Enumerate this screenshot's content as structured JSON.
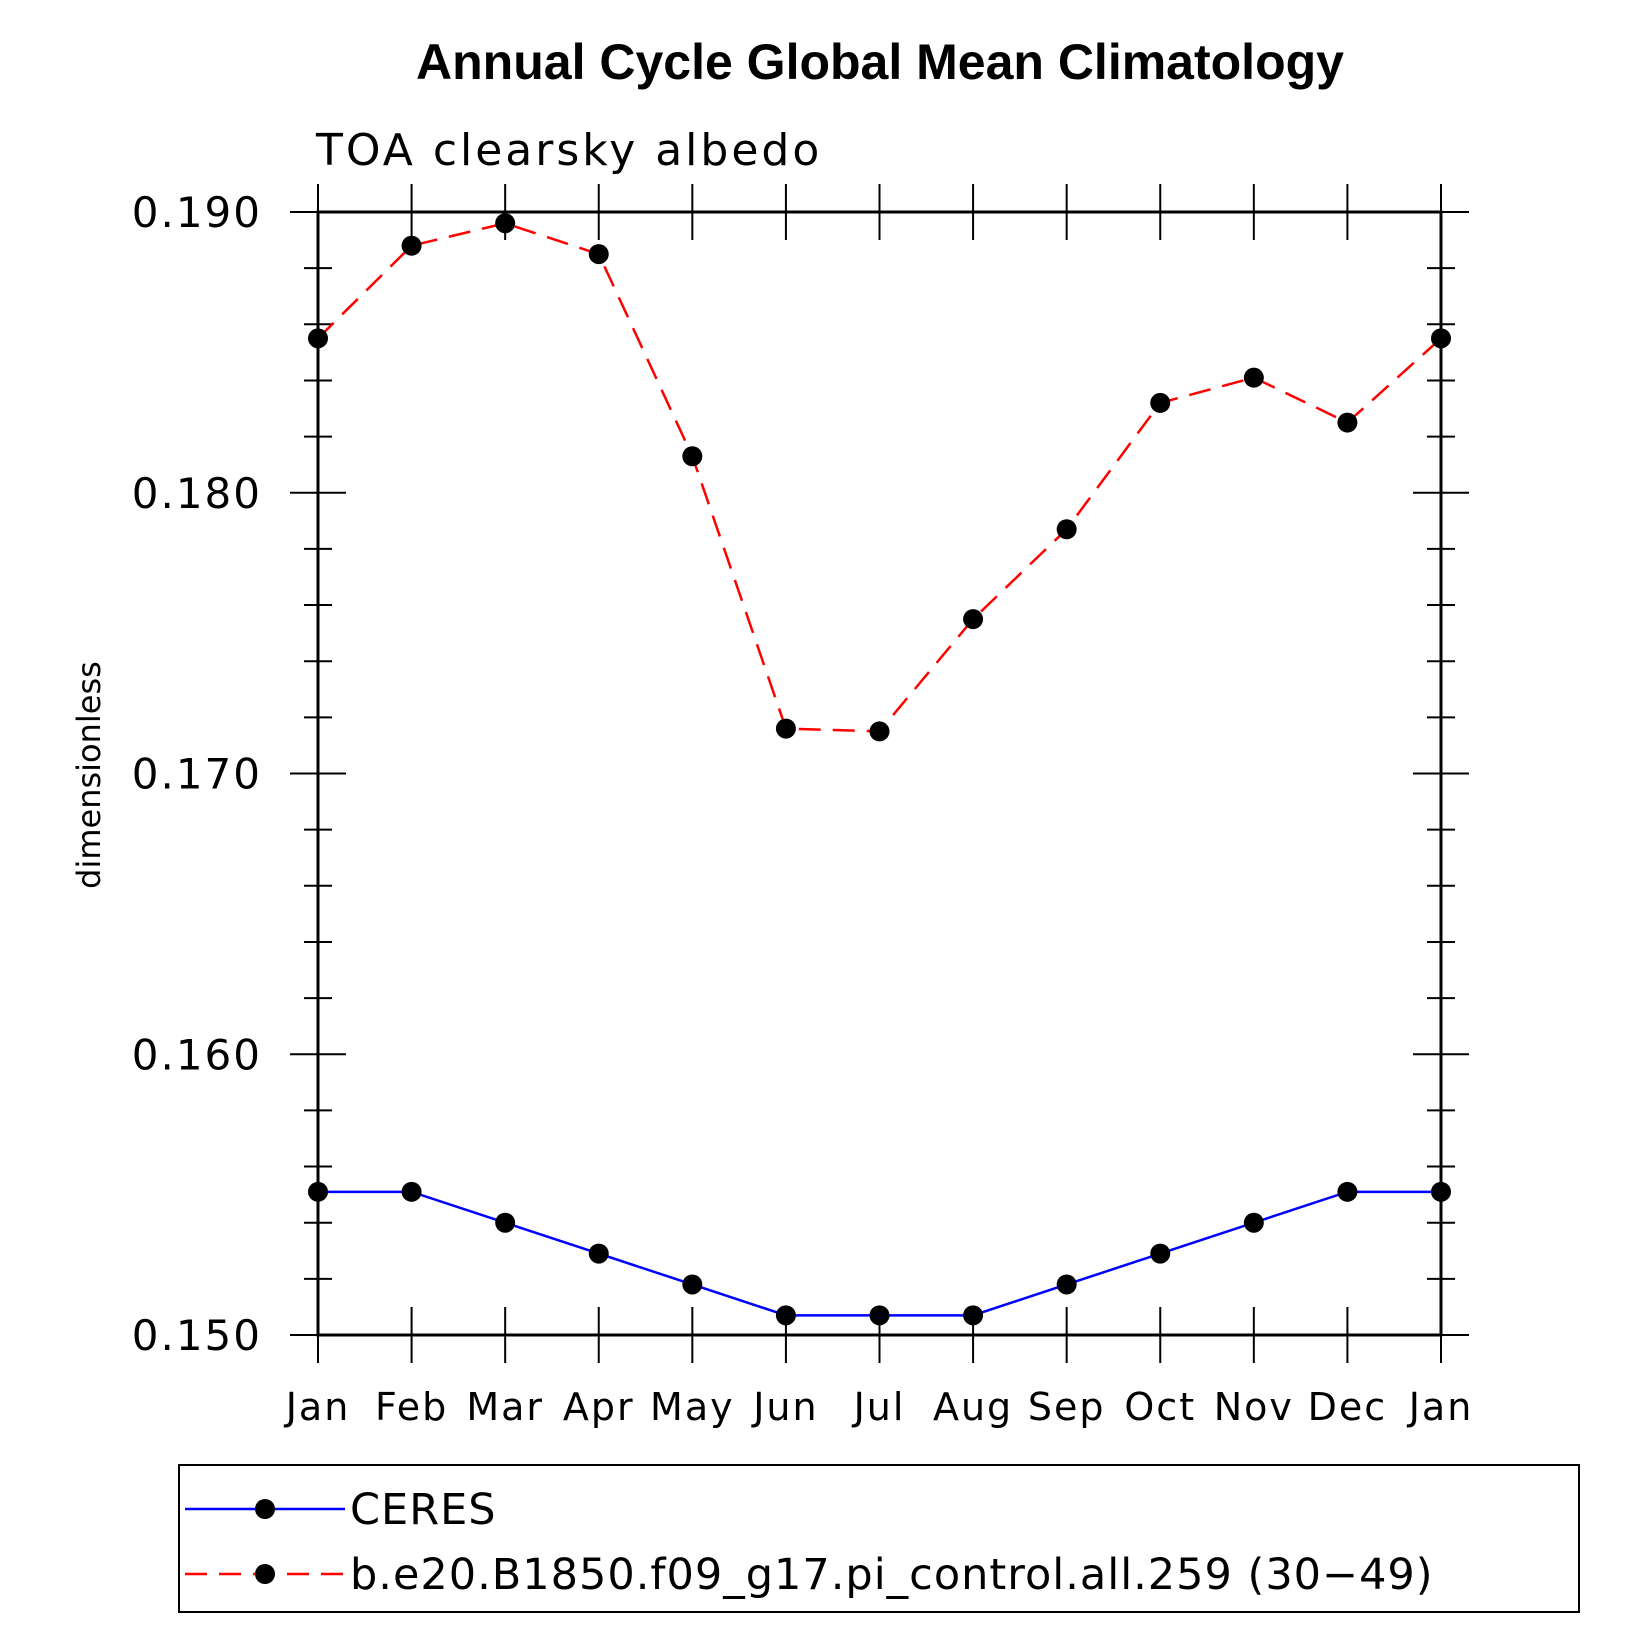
{
  "chart_data": {
    "type": "line",
    "title": "Annual Cycle Global Mean Climatology",
    "subtitle": "TOA clearsky albedo",
    "ylabel": "dimensionless",
    "xlabel": "",
    "categories": [
      "Jan",
      "Feb",
      "Mar",
      "Apr",
      "May",
      "Jun",
      "Jul",
      "Aug",
      "Sep",
      "Oct",
      "Nov",
      "Dec",
      "Jan"
    ],
    "ylim": [
      0.15,
      0.19
    ],
    "yticks": [
      0.15,
      0.16,
      0.17,
      0.18,
      0.19
    ],
    "ytick_labels": [
      "0.150",
      "0.160",
      "0.170",
      "0.180",
      "0.190"
    ],
    "y_minor_step": 0.002,
    "grid": false,
    "legend_position": "bottom",
    "series": [
      {
        "name": "CERES",
        "color": "#0000ff",
        "style": "solid",
        "marker": "circle",
        "values": [
          0.1551,
          0.1551,
          0.154,
          0.1529,
          0.1518,
          0.1507,
          0.1507,
          0.1507,
          0.1518,
          0.1529,
          0.154,
          0.1551,
          0.1551
        ]
      },
      {
        "name": "b.e20.B1850.f09_g17.pi_control.all.259 (30−49)",
        "color": "#ff0000",
        "style": "dashed",
        "marker": "circle",
        "values": [
          0.1855,
          0.1888,
          0.1896,
          0.1885,
          0.1813,
          0.1716,
          0.1715,
          0.1755,
          0.1787,
          0.1832,
          0.1841,
          0.1825,
          0.1855
        ]
      }
    ]
  }
}
